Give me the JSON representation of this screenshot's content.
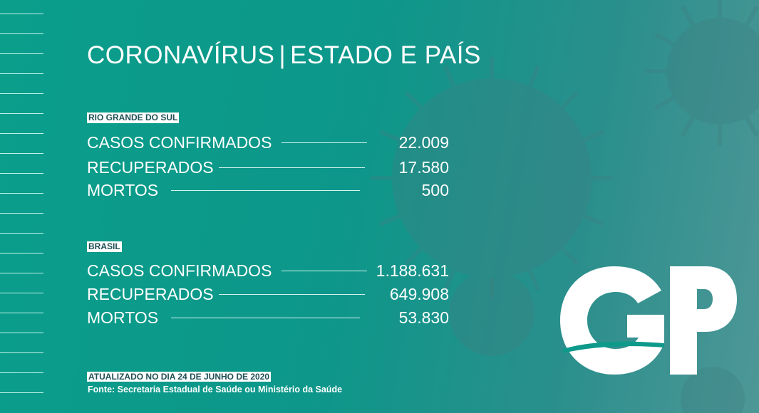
{
  "title": {
    "left": "CORONAVÍRUS",
    "separator": "|",
    "right": "ESTADO E PAÍS"
  },
  "sections": [
    {
      "label": "RIO GRANDE DO SUL",
      "rows": [
        {
          "name": "CASOS CONFIRMADOS",
          "value": "22.009"
        },
        {
          "name": "RECUPERADOS",
          "value": "17.580"
        },
        {
          "name": "MORTOS",
          "value": "500"
        }
      ]
    },
    {
      "label": "BRASIL",
      "rows": [
        {
          "name": "CASOS CONFIRMADOS",
          "value": "1.188.631"
        },
        {
          "name": "RECUPERADOS",
          "value": "649.908"
        },
        {
          "name": "MORTOS",
          "value": "53.830"
        }
      ]
    }
  ],
  "footer": {
    "updated": "ATUALIZADO NO DIA 24 DE JUNHO DE 2020",
    "source": "Fonte: Secretaria Estadual de Saúde ou Ministério da Saúde"
  },
  "logo": {
    "text": "GP"
  },
  "colors": {
    "background": "#0b9e8b",
    "label_text": "#1d4f55"
  }
}
